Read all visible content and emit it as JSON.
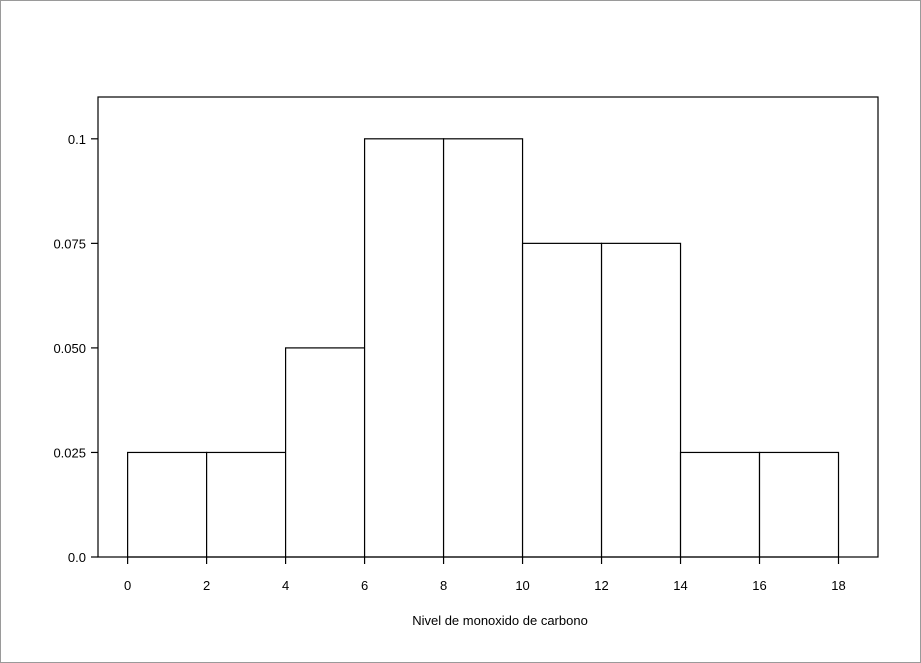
{
  "chart_data": {
    "type": "bar",
    "subtype": "histogram",
    "title": "",
    "xlabel": "Nivel de monoxido de carbono",
    "ylabel": "",
    "bins": [
      {
        "start": 0,
        "end": 2,
        "value": 0.025
      },
      {
        "start": 2,
        "end": 4,
        "value": 0.025
      },
      {
        "start": 4,
        "end": 6,
        "value": 0.05
      },
      {
        "start": 6,
        "end": 8,
        "value": 0.1
      },
      {
        "start": 8,
        "end": 10,
        "value": 0.1
      },
      {
        "start": 10,
        "end": 12,
        "value": 0.075
      },
      {
        "start": 12,
        "end": 14,
        "value": 0.075
      },
      {
        "start": 14,
        "end": 16,
        "value": 0.025
      },
      {
        "start": 16,
        "end": 18,
        "value": 0.025
      }
    ],
    "xlim": [
      -0.75,
      19
    ],
    "ylim": [
      0,
      0.11
    ],
    "x_ticks": [
      {
        "value": 0,
        "label": "0"
      },
      {
        "value": 2,
        "label": "2"
      },
      {
        "value": 4,
        "label": "4"
      },
      {
        "value": 6,
        "label": "6"
      },
      {
        "value": 8,
        "label": "8"
      },
      {
        "value": 10,
        "label": "10"
      },
      {
        "value": 12,
        "label": "12"
      },
      {
        "value": 14,
        "label": "14"
      },
      {
        "value": 16,
        "label": "16"
      },
      {
        "value": 18,
        "label": "18"
      }
    ],
    "y_ticks": [
      {
        "value": 0,
        "label": "0.0"
      },
      {
        "value": 0.025,
        "label": "0.025"
      },
      {
        "value": 0.05,
        "label": "0.050"
      },
      {
        "value": 0.075,
        "label": "0.075"
      },
      {
        "value": 0.1,
        "label": "0.1"
      }
    ],
    "grid": false,
    "legend": "none",
    "colors": {
      "bar_fill": "#ffffff",
      "bar_stroke": "#000000",
      "axis": "#000000"
    }
  }
}
